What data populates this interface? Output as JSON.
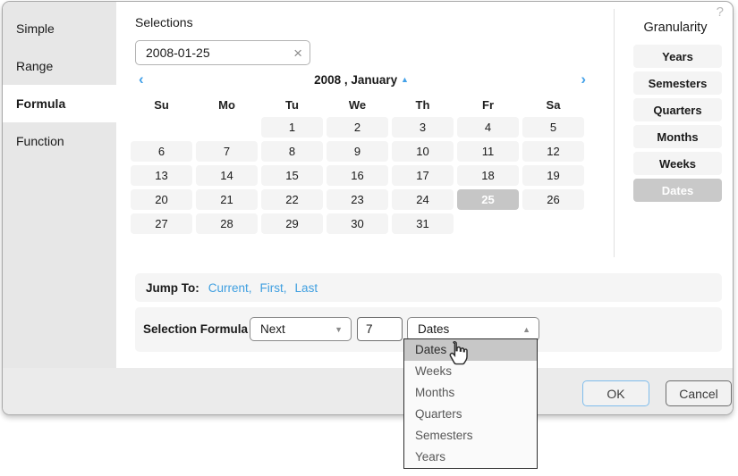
{
  "dialog": {
    "help_icon": "?"
  },
  "sidebar": {
    "items": [
      {
        "label": "Simple",
        "selected": false
      },
      {
        "label": "Range",
        "selected": false
      },
      {
        "label": "Formula",
        "selected": true
      },
      {
        "label": "Function",
        "selected": false
      }
    ]
  },
  "selections": {
    "label": "Selections",
    "value": "2008-01-25",
    "clear_icon": "×"
  },
  "calendar": {
    "title": "2008 , January",
    "prev_icon": "‹",
    "next_icon": "›",
    "collapse_icon": "▲",
    "weekdays": [
      "Su",
      "Mo",
      "Tu",
      "We",
      "Th",
      "Fr",
      "Sa"
    ],
    "cells": [
      "",
      "",
      "1",
      "2",
      "3",
      "4",
      "5",
      "6",
      "7",
      "8",
      "9",
      "10",
      "11",
      "12",
      "13",
      "14",
      "15",
      "16",
      "17",
      "18",
      "19",
      "20",
      "21",
      "22",
      "23",
      "24",
      "25",
      "26",
      "27",
      "28",
      "29",
      "30",
      "31",
      "",
      ""
    ],
    "selected_date": "25"
  },
  "granularity": {
    "title": "Granularity",
    "options": [
      {
        "label": "Years",
        "selected": false
      },
      {
        "label": "Semesters",
        "selected": false
      },
      {
        "label": "Quarters",
        "selected": false
      },
      {
        "label": "Months",
        "selected": false
      },
      {
        "label": "Weeks",
        "selected": false
      },
      {
        "label": "Dates",
        "selected": true
      }
    ]
  },
  "jump_to": {
    "label": "Jump To:",
    "links": [
      "Current",
      "First",
      "Last"
    ],
    "separator": ","
  },
  "formula": {
    "label": "Selection Formula",
    "operation": "Next",
    "operation_dropdown_icon": "▼",
    "count": "7",
    "unit": "Dates",
    "unit_dropdown_icon": "▲",
    "unit_options": [
      {
        "label": "Dates",
        "highlighted": true
      },
      {
        "label": "Weeks",
        "highlighted": false
      },
      {
        "label": "Months",
        "highlighted": false
      },
      {
        "label": "Quarters",
        "highlighted": false
      },
      {
        "label": "Semesters",
        "highlighted": false
      },
      {
        "label": "Years",
        "highlighted": false
      }
    ]
  },
  "footer": {
    "ok_label": "OK",
    "cancel_label": "Cancel"
  },
  "colors": {
    "accent_blue": "#3f9fe0",
    "selected_gray": "#c6c6c6",
    "sidebar_gray": "#e7e7e7",
    "bar_gray": "#f5f5f5",
    "footer_gray": "#ebebeb",
    "ok_border_blue": "#7fbdec"
  }
}
